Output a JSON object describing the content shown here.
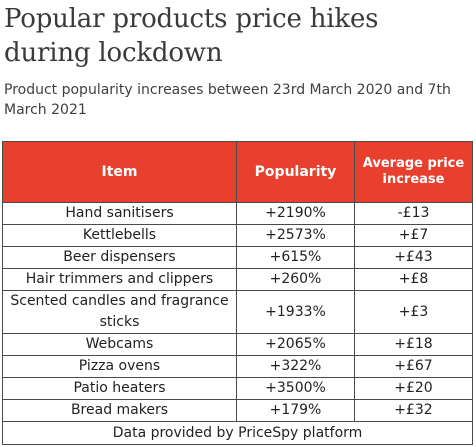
{
  "title": "Popular products price hikes during lockdown",
  "subtitle": "Product popularity increases between 23rd March 2020 and 7th March 2021",
  "table": {
    "headers": [
      "Item",
      "Popularity",
      "Average price increase"
    ],
    "rows": [
      {
        "item": "Hand sanitisers",
        "popularity": "+2190%",
        "increase": "-£13"
      },
      {
        "item": "Kettlebells",
        "popularity": "+2573%",
        "increase": "+£7"
      },
      {
        "item": "Beer dispensers",
        "popularity": "+615%",
        "increase": "+£43"
      },
      {
        "item": "Hair trimmers and clippers",
        "popularity": "+260%",
        "increase": "+£8"
      },
      {
        "item": "Scented candles and fragrance sticks",
        "popularity": "+1933%",
        "increase": "+£3"
      },
      {
        "item": "Webcams",
        "popularity": "+2065%",
        "increase": "+£18"
      },
      {
        "item": "Pizza ovens",
        "popularity": "+322%",
        "increase": "+£67"
      },
      {
        "item": "Patio heaters",
        "popularity": "+3500%",
        "increase": "+£20"
      },
      {
        "item": "Bread makers",
        "popularity": "+179%",
        "increase": "+£32"
      }
    ],
    "footer": "Data provided by PriceSpy platform"
  },
  "colors": {
    "header_background": "#e8402e",
    "header_text": "#ffffff",
    "title_text": "#3a3a3a"
  }
}
